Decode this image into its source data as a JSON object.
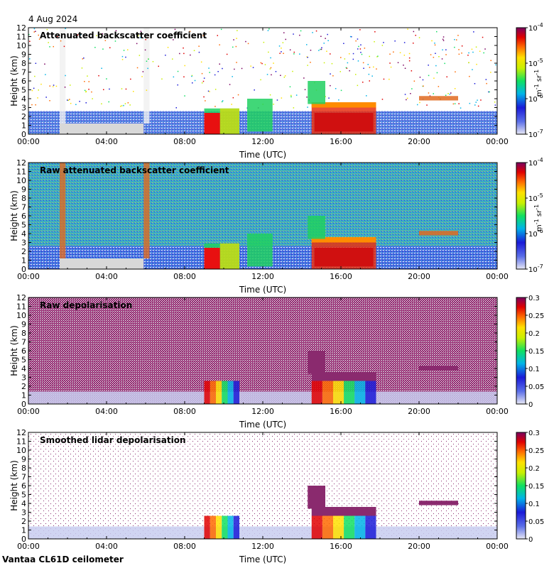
{
  "header": {
    "date": "4 Aug 2024"
  },
  "footer": {
    "instrument": "Vantaa CL61D ceilometer"
  },
  "chart_data": [
    {
      "type": "heatmap",
      "title": "Attenuated backscatter coefficient",
      "xlabel": "Time (UTC)",
      "ylabel": "Height (km)",
      "xticks": [
        "00:00",
        "04:00",
        "08:00",
        "12:00",
        "16:00",
        "20:00",
        "00:00"
      ],
      "yticks": [
        0,
        1,
        2,
        3,
        4,
        5,
        6,
        7,
        8,
        9,
        10,
        11,
        12
      ],
      "xlim_hours": [
        0,
        24
      ],
      "ylim": [
        0,
        12
      ],
      "colorbar": {
        "scale": "log",
        "range": [
          1e-07,
          0.0001
        ],
        "ticks": [
          "10",
          "10",
          "10",
          "10"
        ],
        "tick_exps": [
          "-7",
          "-6",
          "-5",
          "-4"
        ],
        "unit_m": "m",
        "unit_m_exp": "-1",
        "unit_sr": "sr",
        "unit_sr_exp": "-1"
      },
      "background": "#ffffff",
      "cloud_features": [
        {
          "t0": 9.0,
          "t1": 10.8,
          "h0": 0,
          "h1": 2.8,
          "intensity": "high"
        },
        {
          "t0": 14.6,
          "t1": 17.8,
          "h0": 0,
          "h1": 3.5,
          "intensity": "high"
        },
        {
          "t0": 11.2,
          "t1": 12.2,
          "h0": 0.5,
          "h1": 4.0,
          "intensity": "medium"
        },
        {
          "t0": 14.4,
          "t1": 15.2,
          "h0": 3.5,
          "h1": 6.0,
          "intensity": "medium"
        },
        {
          "t0": 20.0,
          "t1": 22.0,
          "h0": 3.8,
          "h1": 4.2,
          "intensity": "high"
        }
      ]
    },
    {
      "type": "heatmap",
      "title": "Raw attenuated backscatter coefficient",
      "xlabel": "Time (UTC)",
      "ylabel": "Height (km)",
      "xticks": [
        "00:00",
        "04:00",
        "08:00",
        "12:00",
        "16:00",
        "20:00",
        "00:00"
      ],
      "yticks": [
        0,
        1,
        2,
        3,
        4,
        5,
        6,
        7,
        8,
        9,
        10,
        11,
        12
      ],
      "xlim_hours": [
        0,
        24
      ],
      "ylim": [
        0,
        12
      ],
      "colorbar": {
        "scale": "log",
        "range": [
          1e-07,
          0.0001
        ],
        "ticks": [
          "10",
          "10",
          "10",
          "10"
        ],
        "tick_exps": [
          "-7",
          "-6",
          "-5",
          "-4"
        ],
        "unit_m": "m",
        "unit_m_exp": "-1",
        "unit_sr": "sr",
        "unit_sr_exp": "-1"
      },
      "background": "#3a64d6"
    },
    {
      "type": "heatmap",
      "title": "Raw depolarisation",
      "xlabel": "Time (UTC)",
      "ylabel": "Height (km)",
      "xticks": [
        "00:00",
        "04:00",
        "08:00",
        "12:00",
        "16:00",
        "20:00",
        "00:00"
      ],
      "yticks": [
        0,
        1,
        2,
        3,
        4,
        5,
        6,
        7,
        8,
        9,
        10,
        11,
        12
      ],
      "xlim_hours": [
        0,
        24
      ],
      "ylim": [
        0,
        12
      ],
      "colorbar": {
        "scale": "linear",
        "range": [
          0,
          0.3
        ],
        "ticks": [
          "0",
          "0.05",
          "0.1",
          "0.15",
          "0.2",
          "0.25",
          "0.3"
        ]
      },
      "background": "#8a2a6e"
    },
    {
      "type": "heatmap",
      "title": "Smoothed lidar depolarisation",
      "xlabel": "Time (UTC)",
      "ylabel": "Height (km)",
      "xticks": [
        "00:00",
        "04:00",
        "08:00",
        "12:00",
        "16:00",
        "20:00",
        "00:00"
      ],
      "yticks": [
        0,
        1,
        2,
        3,
        4,
        5,
        6,
        7,
        8,
        9,
        10,
        11,
        12
      ],
      "xlim_hours": [
        0,
        24
      ],
      "ylim": [
        0,
        12
      ],
      "colorbar": {
        "scale": "linear",
        "range": [
          0,
          0.3
        ],
        "ticks": [
          "0",
          "0.05",
          "0.1",
          "0.15",
          "0.2",
          "0.25",
          "0.3"
        ]
      },
      "background": "#ffffff"
    }
  ]
}
